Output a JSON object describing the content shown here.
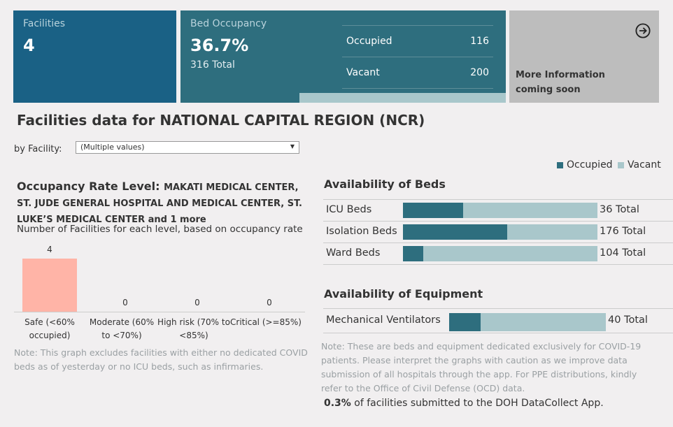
{
  "tiles": {
    "facilities": {
      "label": "Facilities",
      "value": "4"
    },
    "bed_occupancy": {
      "label": "Bed Occupancy",
      "value": "36.7%",
      "total": "316 Total",
      "occupied_label": "Occupied",
      "occupied_value": "116",
      "vacant_label": "Vacant",
      "vacant_value": "200",
      "occupied_fraction": 0.367
    },
    "more_info": {
      "line1": "More Information",
      "line2": "coming soon",
      "icon": "arrow-right-circle-icon"
    }
  },
  "main_title": "Facilities data for NATIONAL CAPITAL REGION (NCR)",
  "filter": {
    "label": "by Facility:",
    "value": "(Multiple values)"
  },
  "legend": {
    "occupied": "Occupied",
    "vacant": "Vacant"
  },
  "colors": {
    "occupied": "#2e6e7e",
    "vacant": "#a9c7cb",
    "safe": "#ffb4a7"
  },
  "occupancy_chart": {
    "title_prefix": "Occupancy Rate Level: ",
    "title_facilities": "MAKATI MEDICAL CENTER, ST. JUDE GENERAL HOSPITAL AND MEDICAL CENTER, ST. LUKE’S MEDICAL CENTER and 1 more",
    "caption": "Number of Facilities for each level, based on occupancy rate",
    "note": "Note: This graph excludes facilities with either no dedicated COVID beds as of yesterday or no ICU beds, such as infirmaries."
  },
  "chart_data": {
    "type": "bar",
    "categories": [
      "Safe (<60% occupied)",
      "Moderate (60% to <70%)",
      "High risk (70% to <85%)",
      "Critical (>=85%)"
    ],
    "values": [
      4,
      0,
      0,
      0
    ],
    "ylim": [
      0,
      4
    ]
  },
  "beds": {
    "title": "Availability of Beds",
    "rows": [
      {
        "label": "ICU Beds",
        "total": "36 Total",
        "occupied_fraction": 0.31
      },
      {
        "label": "Isolation Beds",
        "total": "176 Total",
        "occupied_fraction": 0.535
      },
      {
        "label": "Ward Beds",
        "total": "104 Total",
        "occupied_fraction": 0.106
      }
    ]
  },
  "equipment": {
    "title": "Availability of Equipment",
    "rows": [
      {
        "label": "Mechanical Ventilators",
        "total": "40 Total",
        "occupied_fraction": 0.2
      }
    ]
  },
  "right_note": "Note: These are beds and equipment dedicated exclusively for COVID-19 patients. Please interpret the graphs with caution as we improve data submission of all hospitals through the app. For PPE distributions, kindly refer to the Office of Civil Defense (OCD) data.",
  "footer": {
    "percent": "0.3%",
    "text": " of facilities submitted to the DOH DataCollect App."
  }
}
